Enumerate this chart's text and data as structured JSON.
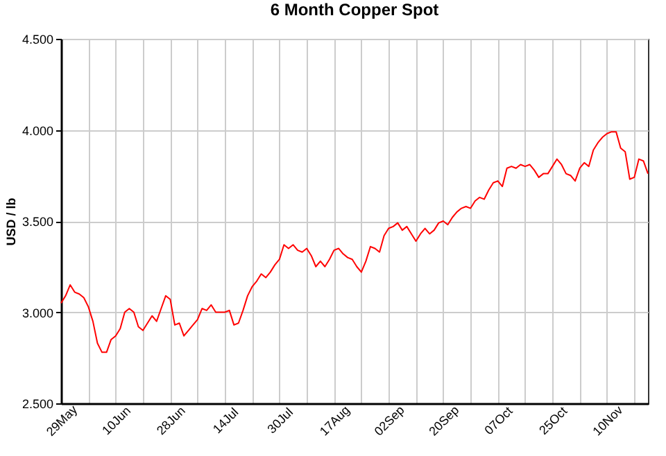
{
  "chart_data": {
    "type": "line",
    "title": "6 Month Copper Spot",
    "ylabel": "USD / lb",
    "categories": [
      "29May",
      null,
      null,
      null,
      null,
      null,
      null,
      null,
      null,
      null,
      null,
      null,
      "10Jun",
      null,
      null,
      null,
      null,
      null,
      null,
      null,
      null,
      null,
      null,
      null,
      "28Jun",
      null,
      null,
      null,
      null,
      null,
      null,
      null,
      null,
      null,
      null,
      null,
      "14Jul",
      null,
      null,
      null,
      null,
      null,
      null,
      null,
      null,
      null,
      null,
      null,
      "30Jul",
      null,
      null,
      null,
      null,
      null,
      null,
      null,
      null,
      null,
      null,
      null,
      "17Aug",
      null,
      null,
      null,
      null,
      null,
      null,
      null,
      null,
      null,
      null,
      null,
      "02Sep",
      null,
      null,
      null,
      null,
      null,
      null,
      null,
      null,
      null,
      null,
      null,
      "20Sep",
      null,
      null,
      null,
      null,
      null,
      null,
      null,
      null,
      null,
      null,
      null,
      "07Oct",
      null,
      null,
      null,
      null,
      null,
      null,
      null,
      null,
      null,
      null,
      null,
      "25Oct",
      null,
      null,
      null,
      null,
      null,
      null,
      null,
      null,
      null,
      null,
      null,
      "10Nov",
      null,
      null,
      null,
      null,
      null,
      null,
      null,
      null,
      null
    ],
    "series": [
      {
        "color": "#ff0000",
        "values": [
          3.05,
          3.09,
          3.15,
          3.11,
          3.1,
          3.08,
          3.03,
          2.95,
          2.83,
          2.78,
          2.78,
          2.85,
          2.87,
          2.91,
          3.0,
          3.02,
          3.0,
          2.92,
          2.9,
          2.94,
          2.98,
          2.95,
          3.02,
          3.09,
          3.07,
          2.93,
          2.94,
          2.87,
          2.9,
          2.93,
          2.96,
          3.02,
          3.01,
          3.04,
          3.0,
          3.0,
          3.0,
          3.01,
          2.93,
          2.94,
          3.01,
          3.09,
          3.14,
          3.17,
          3.21,
          3.19,
          3.22,
          3.26,
          3.29,
          3.37,
          3.35,
          3.37,
          3.34,
          3.33,
          3.35,
          3.31,
          3.25,
          3.28,
          3.25,
          3.29,
          3.34,
          3.35,
          3.32,
          3.3,
          3.29,
          3.25,
          3.22,
          3.28,
          3.36,
          3.35,
          3.33,
          3.42,
          3.46,
          3.47,
          3.49,
          3.45,
          3.47,
          3.43,
          3.39,
          3.43,
          3.46,
          3.43,
          3.45,
          3.49,
          3.5,
          3.48,
          3.52,
          3.55,
          3.57,
          3.58,
          3.57,
          3.61,
          3.63,
          3.62,
          3.67,
          3.71,
          3.72,
          3.69,
          3.79,
          3.8,
          3.79,
          3.81,
          3.8,
          3.81,
          3.78,
          3.74,
          3.76,
          3.76,
          3.8,
          3.84,
          3.81,
          3.76,
          3.75,
          3.72,
          3.79,
          3.82,
          3.8,
          3.89,
          3.93,
          3.96,
          3.98,
          3.99,
          3.99,
          3.9,
          3.88,
          3.73,
          3.74,
          3.84,
          3.83,
          3.76
        ]
      }
    ],
    "ylim": [
      2.5,
      4.5
    ],
    "yticks": [
      {
        "value": 2.5,
        "label": "2.500"
      },
      {
        "value": 3.0,
        "label": "3.000"
      },
      {
        "value": 3.5,
        "label": "3.500"
      },
      {
        "value": 4.0,
        "label": "4.000"
      },
      {
        "value": 4.5,
        "label": "4.500"
      }
    ],
    "grid": true
  }
}
